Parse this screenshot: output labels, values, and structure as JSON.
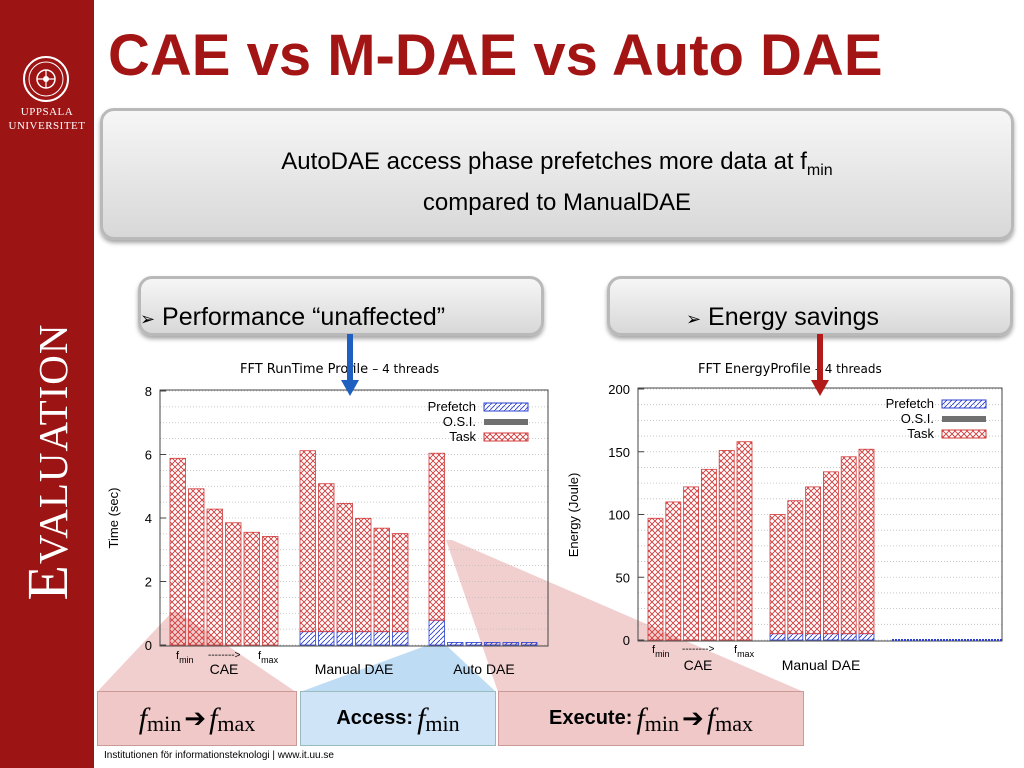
{
  "sidebar": {
    "university_line1": "UPPSALA",
    "university_line2": "UNIVERSITET",
    "section_title": "Evaluation",
    "color": "#9d1414"
  },
  "title": "CAE vs M-DAE vs Auto DAE",
  "main_box": {
    "text_pre": "AutoDAE access phase prefetches more data at f",
    "text_sub": "min",
    "text_line2": "compared to ManualDAE"
  },
  "bullets": {
    "performance": "Performance “unaffected”",
    "energy": "Energy savings",
    "marker": "➢"
  },
  "legend": {
    "prefetch": "Prefetch",
    "osi": "O.S.I.",
    "task": "Task"
  },
  "freq_labels": {
    "f": "f",
    "min": "min",
    "max": "max",
    "arrow": "-------->"
  },
  "chart_data": [
    {
      "type": "bar",
      "stacked": true,
      "title": "FFT RunTime Profile",
      "title_note": "– 4 threads",
      "ylabel": "Time (sec)",
      "ylim": [
        0,
        8
      ],
      "yticks": [
        0,
        2,
        4,
        6,
        8
      ],
      "groups": [
        "CAE",
        "Manual DAE",
        "Auto DAE"
      ],
      "series": [
        {
          "name": "Prefetch",
          "values": [
            [
              0,
              0,
              0,
              0,
              0,
              0
            ],
            [
              0.42,
              0.42,
              0.42,
              0.42,
              0.42,
              0.42
            ],
            [
              0.78,
              0.08,
              0.08,
              0.08,
              0.08,
              0.08
            ]
          ]
        },
        {
          "name": "O.S.I.",
          "values": [
            [
              0,
              0,
              0,
              0,
              0,
              0
            ],
            [
              0,
              0,
              0,
              0,
              0,
              0
            ],
            [
              0,
              0,
              0,
              0,
              0,
              0
            ]
          ]
        },
        {
          "name": "Task",
          "values": [
            [
              5.88,
              4.92,
              4.28,
              3.85,
              3.55,
              3.42
            ],
            [
              5.7,
              4.66,
              4.04,
              3.57,
              3.26,
              3.09
            ],
            [
              5.26,
              0,
              0,
              0,
              0,
              0
            ]
          ]
        }
      ]
    },
    {
      "type": "bar",
      "stacked": true,
      "title": "FFT EnergyProfile",
      "title_note": "– 4 threads",
      "ylabel": "Energy (Joule)",
      "ylim": [
        0,
        200
      ],
      "yticks": [
        0,
        50,
        100,
        150,
        200
      ],
      "groups": [
        "CAE",
        "Manual DAE"
      ],
      "series": [
        {
          "name": "Prefetch",
          "values": [
            [
              0,
              0,
              0,
              0,
              0,
              0
            ],
            [
              5,
              5,
              5,
              5,
              5,
              5
            ]
          ]
        },
        {
          "name": "O.S.I.",
          "values": [
            [
              0,
              0,
              0,
              0,
              0,
              0
            ],
            [
              0,
              0,
              0,
              0,
              0,
              0
            ]
          ]
        },
        {
          "name": "Task",
          "values": [
            [
              97,
              110,
              122,
              136,
              151,
              158
            ],
            [
              95,
              106,
              117,
              129,
              141,
              147
            ]
          ]
        }
      ]
    }
  ],
  "bottom_boxes": {
    "box1_from": "min",
    "box1_to": "max",
    "box2_label": "Access:",
    "box2_sub": "min",
    "box3_label": "Execute:",
    "box3_from": "min",
    "box3_to": "max",
    "f": "f",
    "arrow": "➔"
  },
  "footer": "Institutionen för informationsteknologi | www.it.uu.se",
  "colors": {
    "title": "#a31515",
    "task_stroke": "#d33a3a",
    "prefetch_stroke": "#2a3fd0",
    "osi": "#707070",
    "arrow_blue": "#1f5fbf",
    "arrow_red": "#b31b1b"
  }
}
